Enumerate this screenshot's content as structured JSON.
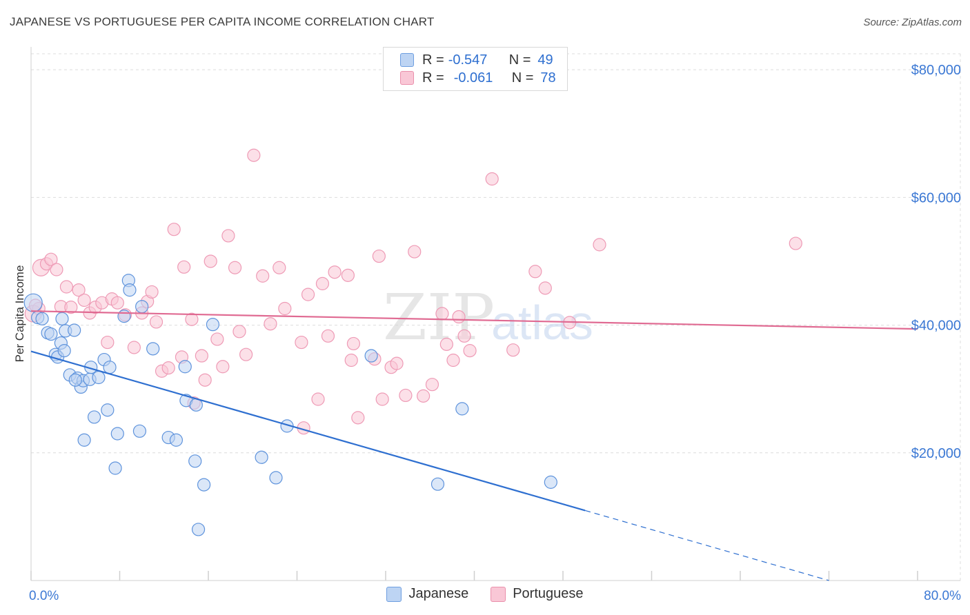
{
  "title": "JAPANESE VS PORTUGUESE PER CAPITA INCOME CORRELATION CHART",
  "source": "Source: ZipAtlas.com",
  "watermark": {
    "zip": "ZIP",
    "atlas": "atlas"
  },
  "legend_stats": [
    {
      "r_label": "R =",
      "r_value": "-0.547",
      "n_label": "N =",
      "n_value": "49"
    },
    {
      "r_label": "R =",
      "r_value": "-0.061",
      "n_label": "N =",
      "n_value": "78"
    }
  ],
  "colors": {
    "blue": "#2e6fd0",
    "blue_fill": "#bdd4f3",
    "pink": "#e06a92",
    "pink_fill": "#f9c7d6",
    "grid": "#dcdcdc",
    "axis_text": "#3b78d4"
  },
  "chart_data": {
    "type": "scatter",
    "title": "JAPANESE VS PORTUGUESE PER CAPITA INCOME CORRELATION CHART",
    "xlabel": "",
    "ylabel": "Per Capita Income",
    "xlim": [
      0,
      80
    ],
    "ylim": [
      0,
      82500
    ],
    "x_tick_labels": [
      "0.0%",
      "80.0%"
    ],
    "y_ticks": [
      20000,
      40000,
      60000,
      80000
    ],
    "y_tick_labels": [
      "$20,000",
      "$40,000",
      "$60,000",
      "$80,000"
    ],
    "grid": true,
    "legend": "bottom-center",
    "series": [
      {
        "name": "Japanese",
        "points": [
          [
            0.2,
            43500
          ],
          [
            0.6,
            41200
          ],
          [
            1.0,
            41000
          ],
          [
            1.5,
            38800
          ],
          [
            1.8,
            38600
          ],
          [
            2.2,
            35400
          ],
          [
            2.4,
            35000
          ],
          [
            2.7,
            37200
          ],
          [
            3.0,
            36000
          ],
          [
            3.1,
            39100
          ],
          [
            3.9,
            39200
          ],
          [
            3.5,
            32200
          ],
          [
            4.2,
            31700
          ],
          [
            4.5,
            30300
          ],
          [
            4.7,
            31300
          ],
          [
            5.3,
            31500
          ],
          [
            5.4,
            33400
          ],
          [
            6.1,
            31800
          ],
          [
            6.6,
            34600
          ],
          [
            7.1,
            33400
          ],
          [
            5.7,
            25600
          ],
          [
            6.9,
            26700
          ],
          [
            7.6,
            17600
          ],
          [
            7.8,
            23000
          ],
          [
            4.8,
            22000
          ],
          [
            8.4,
            41400
          ],
          [
            8.8,
            47000
          ],
          [
            8.9,
            45500
          ],
          [
            9.8,
            23400
          ],
          [
            11.0,
            36300
          ],
          [
            12.4,
            22400
          ],
          [
            13.1,
            22000
          ],
          [
            13.9,
            33500
          ],
          [
            14.0,
            28200
          ],
          [
            14.8,
            18700
          ],
          [
            14.9,
            27500
          ],
          [
            15.1,
            8000
          ],
          [
            15.6,
            15000
          ],
          [
            16.4,
            40100
          ],
          [
            20.8,
            19300
          ],
          [
            22.1,
            16100
          ],
          [
            23.1,
            24200
          ],
          [
            30.7,
            35200
          ],
          [
            36.7,
            15100
          ],
          [
            38.9,
            26900
          ],
          [
            46.9,
            15400
          ],
          [
            10.0,
            42900
          ],
          [
            2.8,
            41000
          ],
          [
            4.0,
            31400
          ]
        ]
      },
      {
        "name": "Portuguese",
        "points": [
          [
            0.2,
            41800
          ],
          [
            0.7,
            42600
          ],
          [
            0.9,
            49000
          ],
          [
            1.4,
            49600
          ],
          [
            1.8,
            50300
          ],
          [
            2.3,
            48700
          ],
          [
            2.7,
            42900
          ],
          [
            3.2,
            46000
          ],
          [
            3.6,
            42800
          ],
          [
            4.3,
            45500
          ],
          [
            4.8,
            43900
          ],
          [
            5.3,
            41900
          ],
          [
            5.8,
            42800
          ],
          [
            6.4,
            43500
          ],
          [
            6.9,
            37300
          ],
          [
            7.3,
            44100
          ],
          [
            7.8,
            43500
          ],
          [
            8.5,
            41600
          ],
          [
            9.3,
            36500
          ],
          [
            10.0,
            41900
          ],
          [
            10.5,
            43700
          ],
          [
            10.9,
            45200
          ],
          [
            11.3,
            40500
          ],
          [
            11.8,
            32800
          ],
          [
            12.4,
            33300
          ],
          [
            12.9,
            55000
          ],
          [
            13.6,
            35000
          ],
          [
            13.8,
            49100
          ],
          [
            14.5,
            40900
          ],
          [
            14.7,
            27800
          ],
          [
            15.4,
            35200
          ],
          [
            15.7,
            31400
          ],
          [
            16.2,
            50000
          ],
          [
            16.8,
            37800
          ],
          [
            17.3,
            33500
          ],
          [
            17.8,
            54000
          ],
          [
            18.4,
            49000
          ],
          [
            18.8,
            39000
          ],
          [
            19.4,
            35400
          ],
          [
            20.1,
            66600
          ],
          [
            20.9,
            47700
          ],
          [
            21.6,
            40200
          ],
          [
            22.4,
            49000
          ],
          [
            22.9,
            42600
          ],
          [
            24.4,
            37300
          ],
          [
            25.0,
            44800
          ],
          [
            25.9,
            28400
          ],
          [
            26.3,
            46500
          ],
          [
            26.8,
            38300
          ],
          [
            27.4,
            48300
          ],
          [
            28.6,
            47800
          ],
          [
            28.9,
            34500
          ],
          [
            29.1,
            37100
          ],
          [
            29.5,
            25500
          ],
          [
            31.0,
            34700
          ],
          [
            31.4,
            50800
          ],
          [
            31.7,
            28400
          ],
          [
            32.5,
            33400
          ],
          [
            33.0,
            34000
          ],
          [
            33.8,
            29000
          ],
          [
            34.6,
            51500
          ],
          [
            35.4,
            28900
          ],
          [
            36.2,
            30700
          ],
          [
            37.1,
            41800
          ],
          [
            37.5,
            37000
          ],
          [
            38.1,
            34500
          ],
          [
            38.6,
            41300
          ],
          [
            39.1,
            38300
          ],
          [
            39.6,
            36000
          ],
          [
            41.6,
            62900
          ],
          [
            43.5,
            36100
          ],
          [
            45.5,
            48400
          ],
          [
            46.4,
            45800
          ],
          [
            48.6,
            40400
          ],
          [
            51.3,
            52600
          ],
          [
            69.0,
            52800
          ],
          [
            24.6,
            23900
          ],
          [
            0.4,
            43100
          ]
        ]
      }
    ],
    "trendlines": [
      {
        "series": "Japanese",
        "x_start": 0,
        "y_start": 35900,
        "x_solid_end": 50,
        "x_end": 72,
        "y_end": 0
      },
      {
        "series": "Portuguese",
        "x_start": 0,
        "y_start": 42200,
        "x_end": 80,
        "y_end": 39400
      }
    ]
  }
}
